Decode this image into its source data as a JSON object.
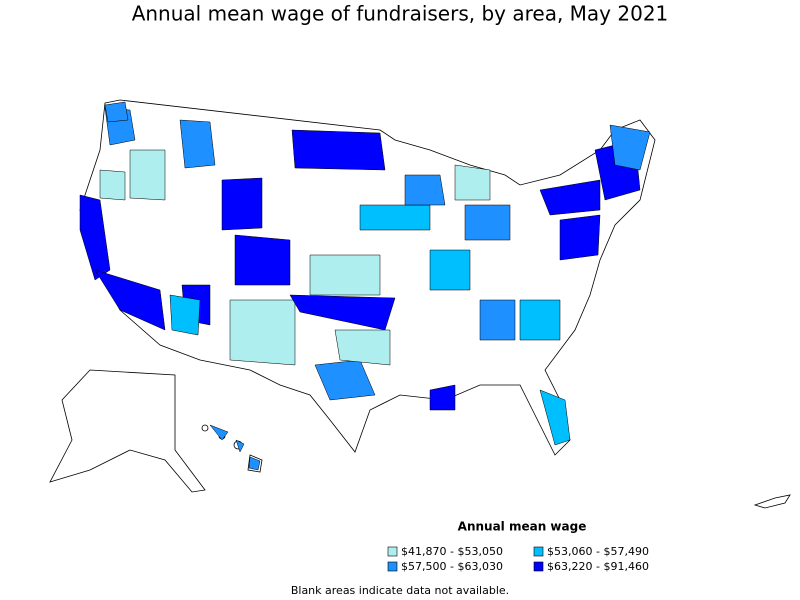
{
  "title": "Annual mean wage of fundraisers, by area, May 2021",
  "legend": {
    "title": "Annual mean wage",
    "items": [
      {
        "label": "$41,870 - $53,050",
        "color": "#aeeeee"
      },
      {
        "label": "$53,060 - $57,490",
        "color": "#00bfff"
      },
      {
        "label": "$57,500 - $63,030",
        "color": "#1e90ff"
      },
      {
        "label": "$63,220 - $91,460",
        "color": "#0000ff"
      }
    ]
  },
  "note": "Blank areas indicate data not available."
}
